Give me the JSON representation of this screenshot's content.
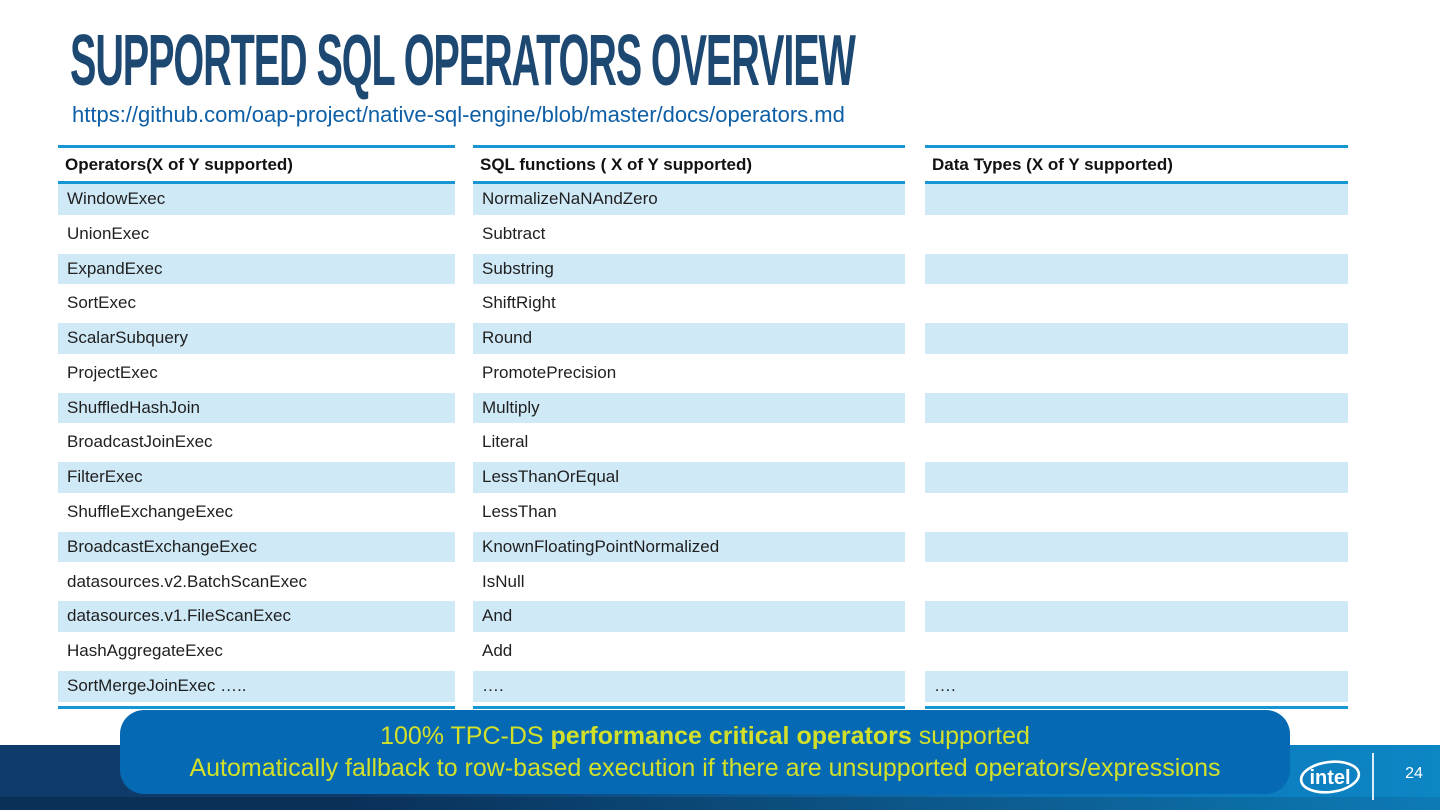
{
  "slide": {
    "title": "SUPPORTED SQL OPERATORS OVERVIEW",
    "link": "https://github.com/oap-project/native-sql-engine/blob/master/docs/operators.md",
    "page_number": "24",
    "logo_text": "intel"
  },
  "columns": [
    {
      "header": "Operators(X of Y supported)",
      "rows": [
        "WindowExec",
        "UnionExec",
        "ExpandExec",
        "SortExec",
        "ScalarSubquery",
        "ProjectExec",
        "ShuffledHashJoin",
        "BroadcastJoinExec",
        "FilterExec",
        "ShuffleExchangeExec",
        "BroadcastExchangeExec",
        "datasources.v2.BatchScanExec",
        "datasources.v1.FileScanExec",
        "HashAggregateExec",
        "SortMergeJoinExec ….."
      ]
    },
    {
      "header": "SQL functions ( X of Y supported)",
      "rows": [
        "NormalizeNaNAndZero",
        "Subtract",
        "Substring",
        "ShiftRight",
        "Round",
        "PromotePrecision",
        "Multiply",
        "Literal",
        "LessThanOrEqual",
        "LessThan",
        "KnownFloatingPointNormalized",
        "IsNull",
        "And",
        "Add",
        "…."
      ]
    },
    {
      "header": "Data Types (X of Y supported)",
      "rows": [
        "",
        "",
        "",
        "",
        "",
        "",
        "",
        "",
        "",
        "",
        "",
        "",
        "",
        "",
        "…."
      ]
    }
  ],
  "banner": {
    "line1_prefix": "100% TPC-DS ",
    "line1_bold": "performance critical operators",
    "line1_suffix": " supported",
    "line2": "Automatically fallback to row-based execution if there are unsupported operators/expressions"
  },
  "colors": {
    "title-navy": "#1c4872",
    "link-blue": "#0e5fa6",
    "rule-cyan": "#1697d3",
    "row-blue": "#cfe9f7",
    "banner-blue": "#0569b4",
    "highlight-yellow": "#d3e02a"
  }
}
